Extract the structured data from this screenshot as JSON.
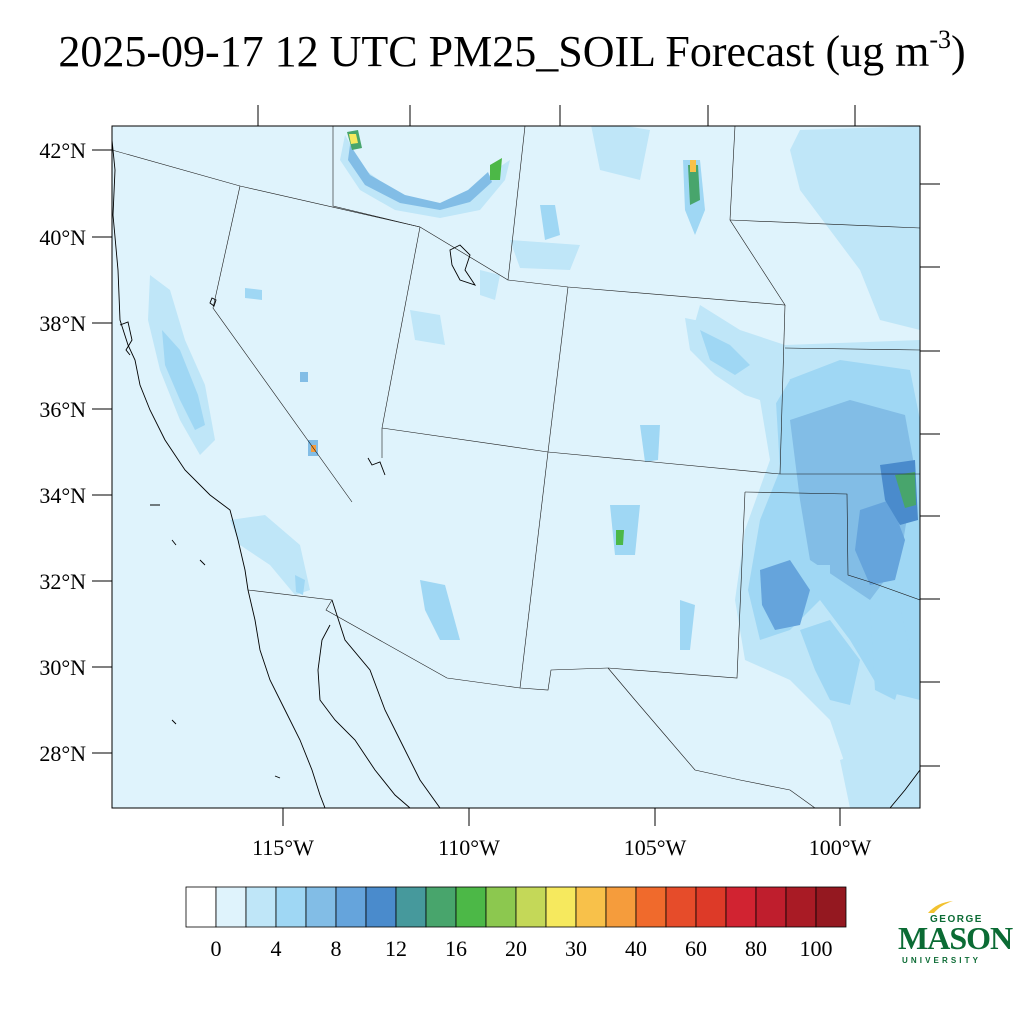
{
  "title": {
    "main": "2025-09-17 12 UTC PM25_SOIL Forecast (ug m",
    "sup": "-3",
    "close": ")"
  },
  "map": {
    "lon_range": [
      -119.6,
      -97.9
    ],
    "lat_range": [
      26.8,
      42.6
    ],
    "lon_ticks": [
      -115,
      -110,
      -105,
      -100
    ],
    "lat_ticks": [
      28,
      30,
      32,
      34,
      36,
      38,
      40,
      42
    ],
    "lon_tick_labels": [
      "115°W",
      "110°W",
      "105°W",
      "100°W"
    ],
    "lat_tick_labels": [
      "28°N",
      "30°N",
      "32°N",
      "34°N",
      "36°N",
      "38°N",
      "40°N",
      "42°N"
    ],
    "background_color": "#dff3fc"
  },
  "colorbar": {
    "colors": [
      "#ffffff",
      "#dff3fc",
      "#bfe6f8",
      "#9fd7f4",
      "#82bde6",
      "#65a4dc",
      "#4a8bcc",
      "#46999c",
      "#48a56c",
      "#4cb847",
      "#8cc84f",
      "#c4d858",
      "#f6e95e",
      "#f8c14a",
      "#f59c3c",
      "#f06a2c",
      "#e64c2a",
      "#dd3a28",
      "#d12331",
      "#bf1e2d",
      "#a91b25",
      "#941820"
    ],
    "labels": [
      "0",
      "4",
      "8",
      "12",
      "16",
      "20",
      "30",
      "40",
      "60",
      "80",
      "100"
    ]
  },
  "logo": {
    "line1": "GEORGE",
    "line2": "MASON",
    "line3": "UNIVERSITY",
    "color": "#0b6b34",
    "accent": "#f2c230"
  }
}
